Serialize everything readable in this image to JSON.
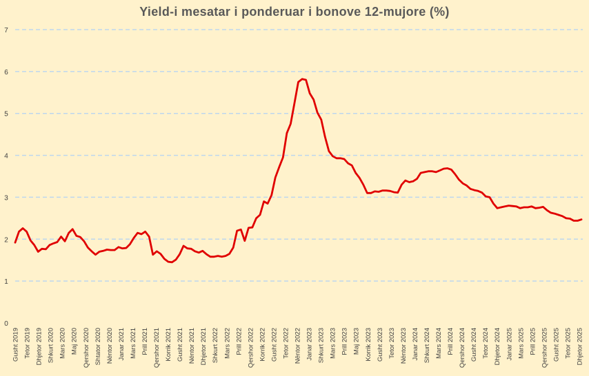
{
  "chart_data": {
    "type": "line",
    "title": "Yield-i mesatar i ponderuar i bonove 12-mujore (%)",
    "xlabel": "",
    "ylabel": "",
    "ylim": [
      0,
      7
    ],
    "yticks": [
      0,
      1,
      2,
      3,
      4,
      5,
      6,
      7
    ],
    "grid": "horizontal dashed",
    "legend": "none",
    "colors": {
      "line": "#e00000",
      "grid": "#bdd7ee",
      "background": "#fff2cc",
      "title": "#595959"
    },
    "x_tick_labels": [
      "Gusht 2019",
      "Tetor 2019",
      "Dhjetor 2019",
      "Shkurt 2020",
      "Mars 2020",
      "Maj 2020",
      "Qershor 2020",
      "Shtator 2020",
      "Nëntor 2020",
      "Janar 2021",
      "Mars 2021",
      "Prill 2021",
      "Qershor 2021",
      "Korrik 2021",
      "Gusht 2021",
      "Nëntor 2021",
      "Dhjetor 2021",
      "Shkurt 2022",
      "Mars 2022",
      "Prill 2022",
      "Qershor 2022",
      "Korrik 2022",
      "Gusht 2022",
      "Tetor 2022",
      "Nëntor 2022",
      "Janar 2023",
      "Shkurt 2023",
      "Mars 2023",
      "Prill 2023",
      "Maj 2023",
      "Korrik 2023",
      "Gusht 2023",
      "Tetor 2023",
      "Nëntor 2023",
      "Janar 2024",
      "Shkurt 2024",
      "Mars 2024",
      "Prill 2024",
      "Qershor 2024",
      "Gusht 2024",
      "Tetor 2024",
      "Dhjetor 2024",
      "Janar 2025",
      "Mars 2025",
      "Prill 2025",
      "Qershor 2025",
      "Gusht 2025",
      "Tetor 2025",
      "Dhjetor 2025"
    ],
    "series": [
      {
        "values": [
          1.92,
          2.18,
          2.26,
          2.18,
          1.97,
          1.86,
          1.7,
          1.77,
          1.76,
          1.86,
          1.9,
          1.93,
          2.06,
          1.95,
          2.15,
          2.24,
          2.08,
          2.05,
          1.95,
          1.8,
          1.71,
          1.63,
          1.7,
          1.72,
          1.75,
          1.74,
          1.74,
          1.81,
          1.78,
          1.79,
          1.88,
          2.03,
          2.15,
          2.12,
          2.18,
          2.06,
          1.63,
          1.71,
          1.65,
          1.53,
          1.46,
          1.45,
          1.51,
          1.64,
          1.84,
          1.78,
          1.77,
          1.71,
          1.68,
          1.72,
          1.64,
          1.58,
          1.58,
          1.6,
          1.58,
          1.6,
          1.65,
          1.8,
          2.2,
          2.23,
          1.96,
          2.27,
          2.28,
          2.5,
          2.58,
          2.9,
          2.85,
          3.05,
          3.47,
          3.72,
          3.95,
          4.53,
          4.75,
          5.25,
          5.75,
          5.82,
          5.8,
          5.48,
          5.33,
          5.02,
          4.85,
          4.44,
          4.1,
          3.98,
          3.93,
          3.93,
          3.91,
          3.81,
          3.76,
          3.58,
          3.46,
          3.3,
          3.1,
          3.1,
          3.14,
          3.13,
          3.16,
          3.16,
          3.15,
          3.12,
          3.11,
          3.3,
          3.4,
          3.36,
          3.38,
          3.44,
          3.58,
          3.6,
          3.62,
          3.62,
          3.6,
          3.64,
          3.68,
          3.69,
          3.66,
          3.55,
          3.42,
          3.33,
          3.28,
          3.2,
          3.17,
          3.15,
          3.11,
          3.02,
          3.0,
          2.85,
          2.74,
          2.76,
          2.78,
          2.8,
          2.79,
          2.78,
          2.74,
          2.76,
          2.76,
          2.78,
          2.74,
          2.75,
          2.77,
          2.69,
          2.63,
          2.61,
          2.58,
          2.55,
          2.5,
          2.49,
          2.44,
          2.44,
          2.47
        ]
      }
    ]
  }
}
